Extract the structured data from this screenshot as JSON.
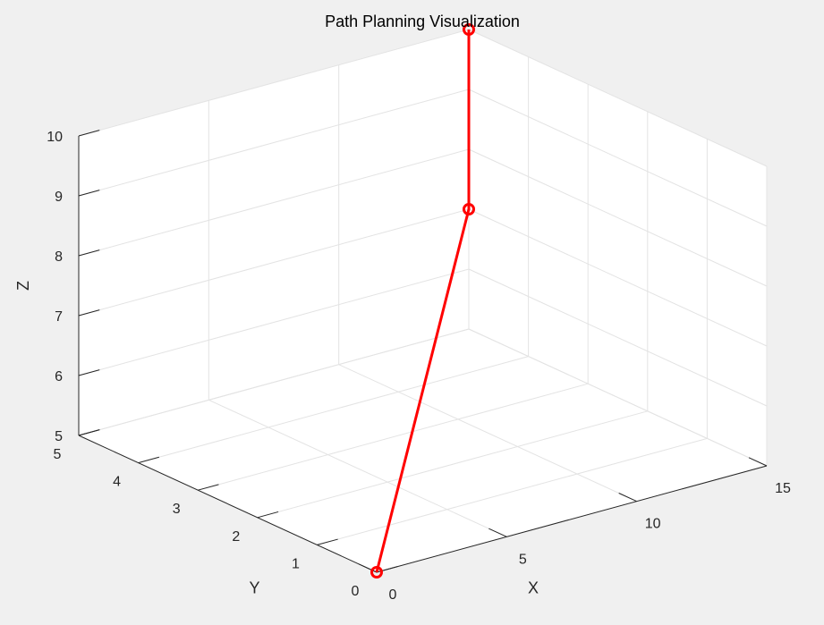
{
  "chart_data": {
    "type": "line3d",
    "title": "Path Planning Visualization",
    "xlabel": "X",
    "ylabel": "Y",
    "zlabel": "Z",
    "xlim": [
      0,
      15
    ],
    "ylim": [
      0,
      5
    ],
    "zlim": [
      5,
      10
    ],
    "xticks": [
      "0",
      "5",
      "10",
      "15"
    ],
    "yticks": [
      "0",
      "1",
      "2",
      "3",
      "4",
      "5"
    ],
    "zticks": [
      "5",
      "6",
      "7",
      "8",
      "9",
      "10"
    ],
    "grid": true,
    "line_color": "#ff0000",
    "marker": "circle",
    "points": [
      {
        "x": 0,
        "y": 0,
        "z": 5
      },
      {
        "x": 15,
        "y": 5,
        "z": 7
      },
      {
        "x": 15,
        "y": 5,
        "z": 10
      }
    ]
  }
}
